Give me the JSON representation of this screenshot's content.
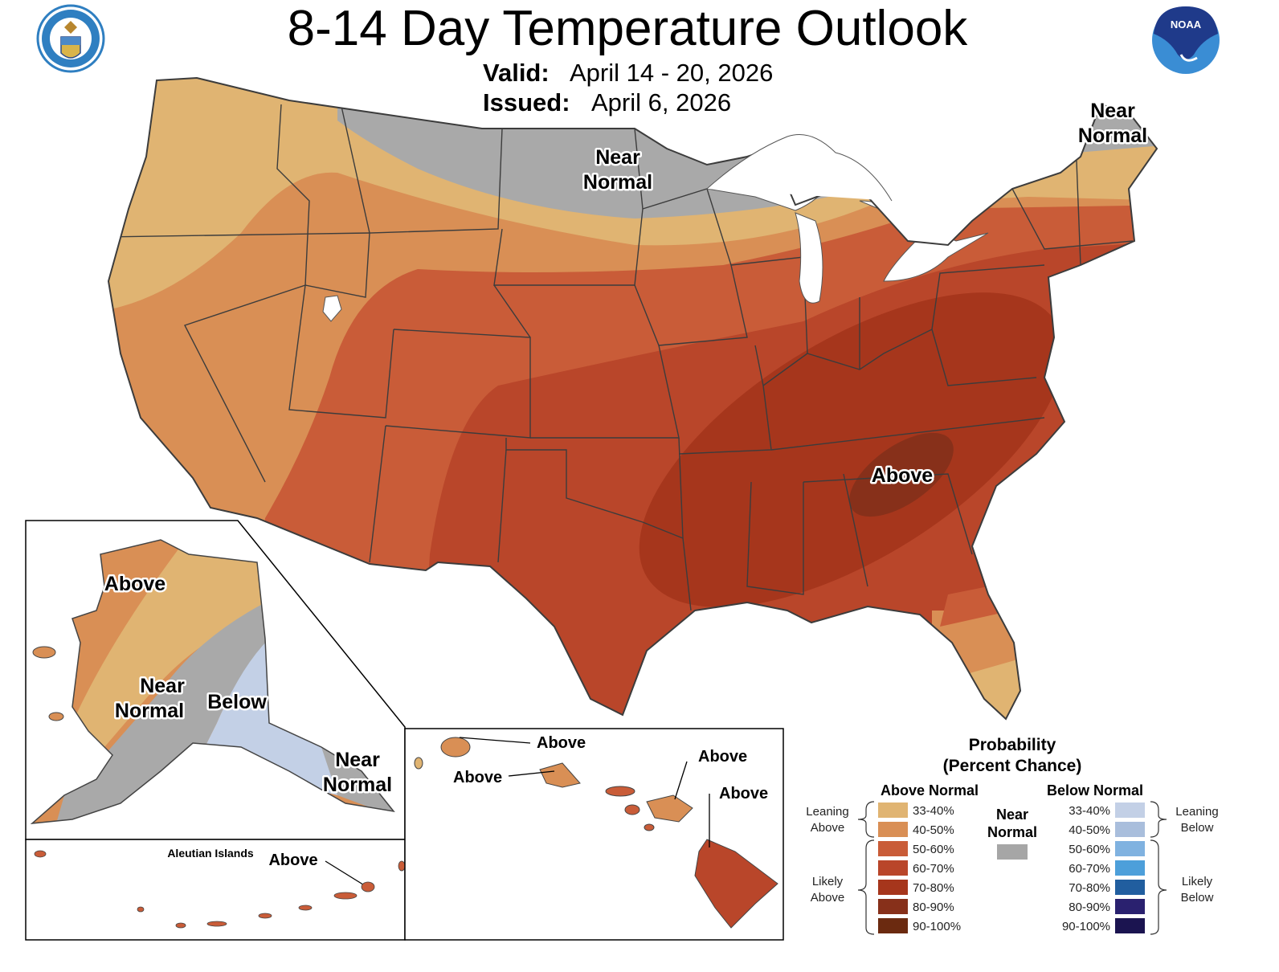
{
  "header": {
    "title": "8-14 Day Temperature Outlook",
    "valid_label": "Valid:",
    "valid_value": "April 14 - 20, 2026",
    "issued_label": "Issued:",
    "issued_value": "April 6, 2026"
  },
  "logos": {
    "left": "DEPARTMENT OF COMMERCE · UNITED STATES OF AMERICA",
    "right": "NOAA"
  },
  "map_labels": {
    "conus_north": [
      "Near",
      "Normal"
    ],
    "conus_northeast": [
      "Near",
      "Normal"
    ],
    "conus_southeast": "Above",
    "alaska_west": "Above",
    "alaska_center": [
      "Near",
      "Normal"
    ],
    "alaska_east": "Below",
    "alaska_southeast": [
      "Near",
      "Normal"
    ],
    "aleutian_title": "Aleutian Islands",
    "aleutian": "Above",
    "hawaii_kauai": "Above",
    "hawaii_oahu": "Above",
    "hawaii_maui": "Above",
    "hawaii_big_island": "Above"
  },
  "legend": {
    "title": "Probability",
    "subtitle": "(Percent Chance)",
    "above_header": "Above Normal",
    "below_header": "Below Normal",
    "near_normal": [
      "Near",
      "Normal"
    ],
    "near_normal_color": "#a6a6a6",
    "leaning_above": [
      "Leaning",
      "Above"
    ],
    "likely_above": [
      "Likely",
      "Above"
    ],
    "leaning_below": [
      "Leaning",
      "Below"
    ],
    "likely_below": [
      "Likely",
      "Below"
    ],
    "ranges": [
      "33-40%",
      "40-50%",
      "50-60%",
      "60-70%",
      "70-80%",
      "80-90%",
      "90-100%"
    ],
    "above_colors": [
      "#e0b472",
      "#d98f55",
      "#c95c38",
      "#b9462a",
      "#a6361c",
      "#87301a",
      "#6b2a10"
    ],
    "below_colors": [
      "#c3d0e6",
      "#a9bedc",
      "#80b2e0",
      "#4d9fda",
      "#215e9f",
      "#2a216f",
      "#1b1450"
    ]
  }
}
